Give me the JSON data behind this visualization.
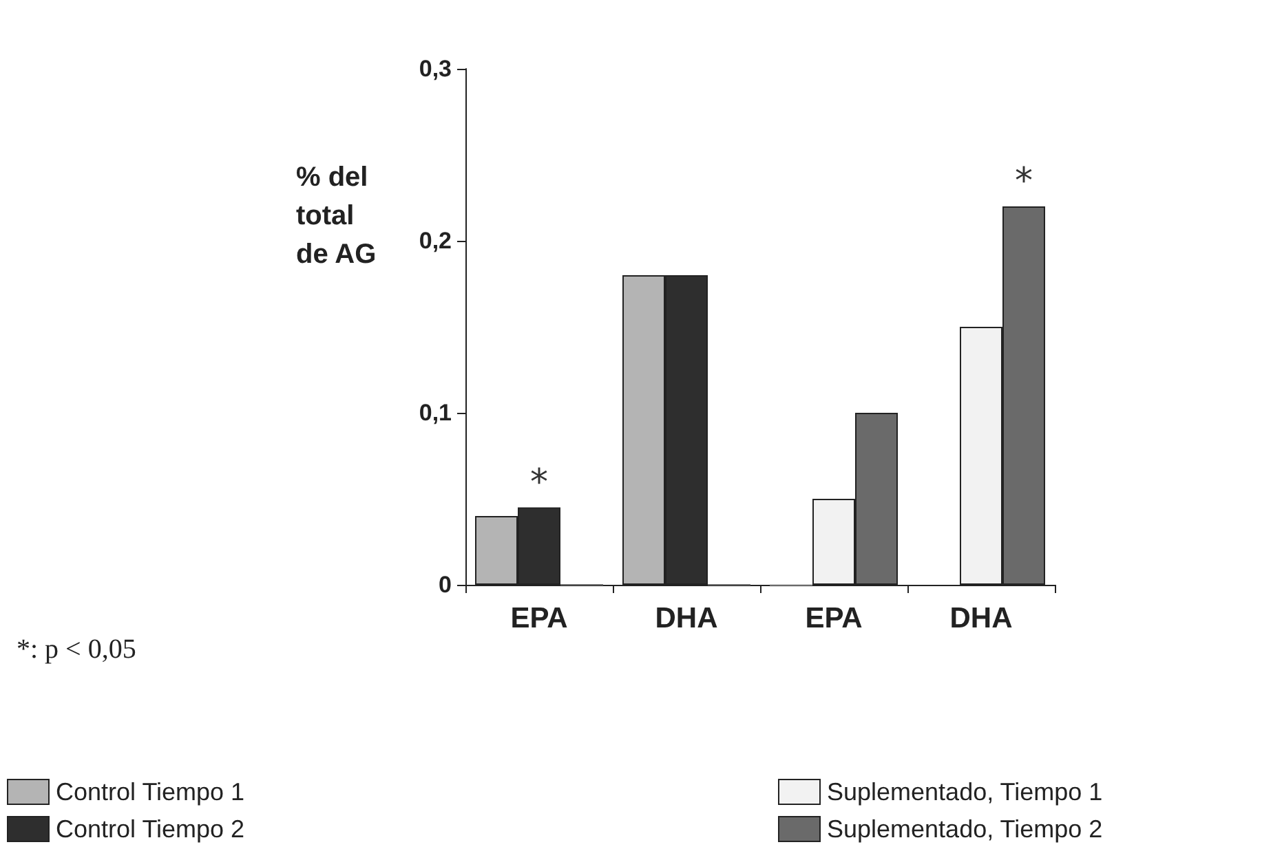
{
  "chart_data": {
    "type": "bar",
    "ylabel": "% del total de AG",
    "categories": [
      "EPA",
      "DHA",
      "EPA",
      "DHA"
    ],
    "series": [
      {
        "name": "Control Tiempo 1",
        "color": "#b4b4b4",
        "values": [
          0.04,
          0.18,
          0,
          null
        ]
      },
      {
        "name": "Control Tiempo 2",
        "color": "#2e2e2e",
        "values": [
          0.045,
          0.18,
          null,
          null
        ],
        "value_labels": [
          "*",
          null,
          null,
          null
        ]
      },
      {
        "name": "Suplementado, Tiempo 1",
        "color": "#f2f2f2",
        "values": [
          null,
          null,
          0.05,
          0.15
        ]
      },
      {
        "name": "Suplementado, Tiempo 2",
        "color": "#6a6a6a",
        "values": [
          0,
          0,
          0.1,
          0.22
        ],
        "value_labels": [
          null,
          null,
          null,
          "*"
        ]
      }
    ],
    "ylim": [
      0,
      0.3
    ],
    "yticks": [
      {
        "value": 0,
        "label": "0"
      },
      {
        "value": 0.1,
        "label": "0,1"
      },
      {
        "value": 0.2,
        "label": "0,2"
      },
      {
        "value": 0.3,
        "label": "0,3"
      }
    ],
    "grid": false,
    "legend": "bottom",
    "annotations": [
      "*: p < 0,05"
    ]
  }
}
